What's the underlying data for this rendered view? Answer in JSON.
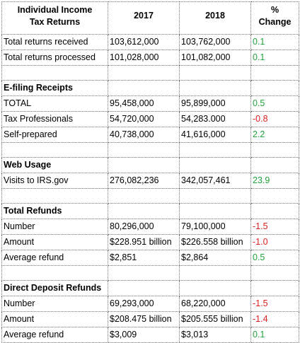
{
  "header": {
    "col1_line1": "Individual Income",
    "col1_line2": "Tax Returns",
    "col2": "2017",
    "col3": "2018",
    "col4_line1": "%",
    "col4_line2": "Change"
  },
  "rows": [
    {
      "label": "Total returns received",
      "v2017": "103,612,000",
      "v2018": "103,762,000",
      "change": "0.1"
    },
    {
      "label": "Total returns processed",
      "v2017": "101,028,000",
      "v2018": "101,082,000",
      "change": "0.1"
    }
  ],
  "sections": [
    {
      "title": "E-filing Receipts",
      "rows": [
        {
          "label": "TOTAL",
          "v2017": "95,458,000",
          "v2018": "95,899,000",
          "change": "0.5"
        },
        {
          "label": "Tax Professionals",
          "v2017": "54,720,000",
          "v2018": "54,283.000",
          "change": "-0.8"
        },
        {
          "label": "Self-prepared",
          "v2017": "40,738,000",
          "v2018": "41,616,000",
          "change": "2.2"
        }
      ]
    },
    {
      "title": "Web Usage",
      "rows": [
        {
          "label": "Visits to IRS.gov",
          "v2017": "276,082,236",
          "v2018": "342,057,461",
          "change": "23.9"
        }
      ]
    },
    {
      "title": "Total Refunds",
      "rows": [
        {
          "label": "Number",
          "v2017": "80,296,000",
          "v2018": "79,100,000",
          "change": "-1.5"
        },
        {
          "label": "Amount",
          "v2017": "$228.951 billion",
          "v2018": "$226.558 billion",
          "change": "-1.0"
        },
        {
          "label": "Average refund",
          "v2017": "$2,851",
          "v2018": "$2,864",
          "change": "0.5"
        }
      ]
    },
    {
      "title": "Direct Deposit Refunds",
      "rows": [
        {
          "label": "Number",
          "v2017": "69,293,000",
          "v2018": "68,220,000",
          "change": "-1.5"
        },
        {
          "label": "Amount",
          "v2017": "$208.475 billion",
          "v2018": "$205.555 billion",
          "change": "-1.4"
        },
        {
          "label": "Average refund",
          "v2017": "$3,009",
          "v2018": "$3,013",
          "change": "0.1"
        }
      ]
    }
  ],
  "colors": {
    "positive": "#22a33c",
    "negative": "#e02020",
    "grid": "#6f6f6f"
  }
}
